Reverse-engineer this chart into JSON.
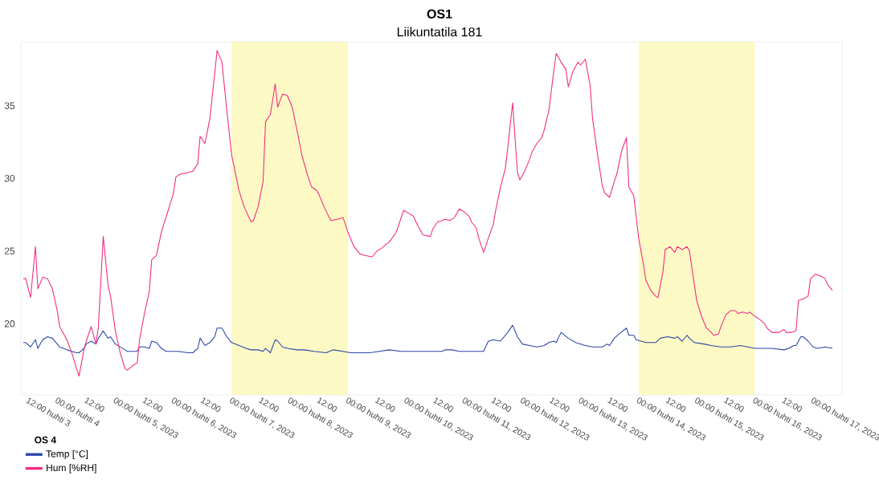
{
  "chart_data": {
    "type": "line",
    "title": "OS1",
    "subtitle": "Liikuntatila 181",
    "legend_title": "OS 4",
    "legend": "bottom left",
    "xlim": [
      "2023-04-03T09:00",
      "2023-04-17T12:00"
    ],
    "xticks": [
      {
        "value": "2023-04-03T12:00",
        "label": "12:00 huhti 3"
      },
      {
        "value": "2023-04-04T00:00",
        "label": "00:00 huhti 4"
      },
      {
        "value": "2023-04-04T12:00",
        "label": "12:00"
      },
      {
        "value": "2023-04-05T00:00",
        "label": "00:00 huhti 5, 2023"
      },
      {
        "value": "2023-04-05T12:00",
        "label": "12:00"
      },
      {
        "value": "2023-04-06T00:00",
        "label": "00:00 huhti 6, 2023"
      },
      {
        "value": "2023-04-06T12:00",
        "label": "12:00"
      },
      {
        "value": "2023-04-07T00:00",
        "label": "00:00 huhti 7, 2023"
      },
      {
        "value": "2023-04-07T12:00",
        "label": "12:00"
      },
      {
        "value": "2023-04-08T00:00",
        "label": "00:00 huhti 8, 2023"
      },
      {
        "value": "2023-04-08T12:00",
        "label": "12:00"
      },
      {
        "value": "2023-04-09T00:00",
        "label": "00:00 huhti 9, 2023"
      },
      {
        "value": "2023-04-09T12:00",
        "label": "12:00"
      },
      {
        "value": "2023-04-10T00:00",
        "label": "00:00 huhti 10, 2023"
      },
      {
        "value": "2023-04-10T12:00",
        "label": "12:00"
      },
      {
        "value": "2023-04-11T00:00",
        "label": "00:00 huhti 11, 2023"
      },
      {
        "value": "2023-04-11T12:00",
        "label": "12:00"
      },
      {
        "value": "2023-04-12T00:00",
        "label": "00:00 huhti 12, 2023"
      },
      {
        "value": "2023-04-12T12:00",
        "label": "12:00"
      },
      {
        "value": "2023-04-13T00:00",
        "label": "00:00 huhti 13, 2023"
      },
      {
        "value": "2023-04-13T12:00",
        "label": "12:00"
      },
      {
        "value": "2023-04-14T00:00",
        "label": "00:00 huhti 14, 2023"
      },
      {
        "value": "2023-04-14T12:00",
        "label": "12:00"
      },
      {
        "value": "2023-04-15T00:00",
        "label": "00:00 huhti 15, 2023"
      },
      {
        "value": "2023-04-15T12:00",
        "label": "12:00"
      },
      {
        "value": "2023-04-16T00:00",
        "label": "00:00 huhti 16, 2023"
      },
      {
        "value": "2023-04-16T12:00",
        "label": "12:00"
      },
      {
        "value": "2023-04-17T00:00",
        "label": "00:00 huhti 17, 2023"
      }
    ],
    "ylim": [
      15.1,
      39.4
    ],
    "yticks": [
      20,
      25,
      30,
      35
    ],
    "bands": [
      {
        "axis": "x",
        "from": "2023-04-07T00:00",
        "to": "2023-04-09T00:00",
        "color": "#fdf9c5"
      },
      {
        "axis": "x",
        "from": "2023-04-14T00:00",
        "to": "2023-04-16T00:00",
        "color": "#fdf9c5"
      }
    ],
    "series": [
      {
        "name": "Temp [°C]",
        "color": "#2b45a6",
        "x": [
          "2023-04-03T10:00",
          "2023-04-03T11:00",
          "2023-04-03T13:00",
          "2023-04-03T15:00",
          "2023-04-03T16:00",
          "2023-04-03T18:00",
          "2023-04-03T20:00",
          "2023-04-03T22:00",
          "2023-04-04T00:00",
          "2023-04-04T01:00",
          "2023-04-04T04:00",
          "2023-04-04T06:00",
          "2023-04-04T08:00",
          "2023-04-04T09:00",
          "2023-04-04T11:00",
          "2023-04-04T12:00",
          "2023-04-04T14:00",
          "2023-04-04T16:00",
          "2023-04-04T17:00",
          "2023-04-04T19:00",
          "2023-04-04T21:00",
          "2023-04-04T22:00",
          "2023-04-05T00:00",
          "2023-04-05T02:00",
          "2023-04-05T04:00",
          "2023-04-05T05:00",
          "2023-04-05T07:00",
          "2023-04-05T09:00",
          "2023-04-05T10:00",
          "2023-04-05T12:00",
          "2023-04-05T14:00",
          "2023-04-05T15:00",
          "2023-04-05T17:00",
          "2023-04-05T19:00",
          "2023-04-05T21:00",
          "2023-04-06T00:00",
          "2023-04-06T02:00",
          "2023-04-06T06:00",
          "2023-04-06T08:00",
          "2023-04-06T10:00",
          "2023-04-06T11:00",
          "2023-04-06T13:00",
          "2023-04-06T15:00",
          "2023-04-06T17:00",
          "2023-04-06T18:00",
          "2023-04-06T20:00",
          "2023-04-06T22:00",
          "2023-04-07T00:00",
          "2023-04-07T03:00",
          "2023-04-07T06:00",
          "2023-04-07T08:00",
          "2023-04-07T11:00",
          "2023-04-07T13:00",
          "2023-04-07T14:00",
          "2023-04-07T16:00",
          "2023-04-07T18:00",
          "2023-04-07T19:00",
          "2023-04-07T21:00",
          "2023-04-07T23:00",
          "2023-04-08T03:00",
          "2023-04-08T06:00",
          "2023-04-08T10:00",
          "2023-04-08T15:00",
          "2023-04-08T18:00",
          "2023-04-08T22:00",
          "2023-04-09T01:00",
          "2023-04-09T06:00",
          "2023-04-09T09:00",
          "2023-04-09T13:00",
          "2023-04-09T17:00",
          "2023-04-09T22:00",
          "2023-04-10T03:00",
          "2023-04-10T07:00",
          "2023-04-10T12:00",
          "2023-04-10T15:00",
          "2023-04-10T16:00",
          "2023-04-10T19:00",
          "2023-04-10T22:00",
          "2023-04-11T03:00",
          "2023-04-11T08:00",
          "2023-04-11T10:00",
          "2023-04-11T12:00",
          "2023-04-11T15:00",
          "2023-04-11T18:00",
          "2023-04-11T20:00",
          "2023-04-11T22:00",
          "2023-04-12T00:00",
          "2023-04-12T03:00",
          "2023-04-12T06:00",
          "2023-04-12T09:00",
          "2023-04-12T11:00",
          "2023-04-12T13:00",
          "2023-04-12T14:00",
          "2023-04-12T16:00",
          "2023-04-12T19:00",
          "2023-04-12T22:00",
          "2023-04-13T02:00",
          "2023-04-13T05:00",
          "2023-04-13T09:00",
          "2023-04-13T11:00",
          "2023-04-13T12:00",
          "2023-04-13T14:00",
          "2023-04-13T16:00",
          "2023-04-13T19:00",
          "2023-04-13T20:00",
          "2023-04-13T22:00",
          "2023-04-13T23:00",
          "2023-04-14T03:00",
          "2023-04-14T07:00",
          "2023-04-14T09:00",
          "2023-04-14T12:00",
          "2023-04-14T15:00",
          "2023-04-14T16:00",
          "2023-04-14T18:00",
          "2023-04-14T20:00",
          "2023-04-14T21:00",
          "2023-04-14T23:00",
          "2023-04-15T03:00",
          "2023-04-15T06:00",
          "2023-04-15T10:00",
          "2023-04-15T14:00",
          "2023-04-15T18:00",
          "2023-04-15T21:00",
          "2023-04-16T00:00",
          "2023-04-16T03:00",
          "2023-04-16T07:00",
          "2023-04-16T12:00",
          "2023-04-16T14:00",
          "2023-04-16T16:00",
          "2023-04-16T17:00",
          "2023-04-16T19:00",
          "2023-04-16T20:00",
          "2023-04-16T22:00",
          "2023-04-17T00:00",
          "2023-04-17T02:00",
          "2023-04-17T05:00",
          "2023-04-17T08:00"
        ],
        "values": [
          18.7,
          18.7,
          18.4,
          18.9,
          18.3,
          18.9,
          19.1,
          19.0,
          18.6,
          18.4,
          18.2,
          18.1,
          18.0,
          18.0,
          18.3,
          18.6,
          18.8,
          18.6,
          19.0,
          19.5,
          19.0,
          19.1,
          18.6,
          18.4,
          18.2,
          18.1,
          18.1,
          18.1,
          18.4,
          18.4,
          18.3,
          18.8,
          18.7,
          18.3,
          18.1,
          18.1,
          18.1,
          18.0,
          18.0,
          18.3,
          19.0,
          18.5,
          18.7,
          19.1,
          19.7,
          19.7,
          19.1,
          18.7,
          18.5,
          18.3,
          18.2,
          18.2,
          18.1,
          18.3,
          18.0,
          18.9,
          18.8,
          18.4,
          18.3,
          18.2,
          18.2,
          18.1,
          18.0,
          18.2,
          18.1,
          18.0,
          18.0,
          18.0,
          18.1,
          18.2,
          18.1,
          18.1,
          18.1,
          18.1,
          18.1,
          18.2,
          18.2,
          18.1,
          18.1,
          18.1,
          18.8,
          18.9,
          18.8,
          19.4,
          19.9,
          19.1,
          18.6,
          18.5,
          18.4,
          18.5,
          18.7,
          18.8,
          18.7,
          19.4,
          19.0,
          18.7,
          18.5,
          18.4,
          18.4,
          18.6,
          18.5,
          19.0,
          19.3,
          19.7,
          19.2,
          19.2,
          18.9,
          18.7,
          18.7,
          19.0,
          19.1,
          19.0,
          19.1,
          18.8,
          19.2,
          19.0,
          18.7,
          18.6,
          18.5,
          18.4,
          18.4,
          18.5,
          18.4,
          18.3,
          18.3,
          18.3,
          18.2,
          18.3,
          18.5,
          18.5,
          19.1,
          19.1,
          18.8,
          18.4,
          18.3,
          18.4,
          18.3
        ]
      },
      {
        "name": "Hum [%RH]",
        "color": "#f22a7f",
        "x": [
          "2023-04-03T10:00",
          "2023-04-03T11:00",
          "2023-04-03T13:00",
          "2023-04-03T15:00",
          "2023-04-03T16:00",
          "2023-04-03T18:00",
          "2023-04-03T20:00",
          "2023-04-03T22:00",
          "2023-04-04T00:00",
          "2023-04-04T01:00",
          "2023-04-04T04:00",
          "2023-04-04T06:00",
          "2023-04-04T08:00",
          "2023-04-04T09:00",
          "2023-04-04T11:00",
          "2023-04-04T12:00",
          "2023-04-04T14:00",
          "2023-04-04T16:00",
          "2023-04-04T17:00",
          "2023-04-04T19:00",
          "2023-04-04T21:00",
          "2023-04-04T22:00",
          "2023-04-05T00:00",
          "2023-04-05T02:00",
          "2023-04-05T04:00",
          "2023-04-05T05:00",
          "2023-04-05T07:00",
          "2023-04-05T09:00",
          "2023-04-05T10:00",
          "2023-04-05T12:00",
          "2023-04-05T14:00",
          "2023-04-05T15:00",
          "2023-04-05T17:00",
          "2023-04-05T19:00",
          "2023-04-05T22:00",
          "2023-04-06T00:00",
          "2023-04-06T01:00",
          "2023-04-06T03:00",
          "2023-04-06T06:00",
          "2023-04-06T08:00",
          "2023-04-06T10:00",
          "2023-04-06T11:00",
          "2023-04-06T13:00",
          "2023-04-06T15:00",
          "2023-04-06T17:00",
          "2023-04-06T18:00",
          "2023-04-06T20:00",
          "2023-04-06T22:00",
          "2023-04-07T00:00",
          "2023-04-07T03:00",
          "2023-04-07T05:00",
          "2023-04-07T08:00",
          "2023-04-07T09:00",
          "2023-04-07T11:00",
          "2023-04-07T13:00",
          "2023-04-07T14:00",
          "2023-04-07T16:00",
          "2023-04-07T18:00",
          "2023-04-07T19:00",
          "2023-04-07T21:00",
          "2023-04-07T23:00",
          "2023-04-08T01:00",
          "2023-04-08T03:00",
          "2023-04-08T05:00",
          "2023-04-08T07:00",
          "2023-04-08T09:00",
          "2023-04-08T11:00",
          "2023-04-08T12:00",
          "2023-04-08T14:00",
          "2023-04-08T16:00",
          "2023-04-08T17:00",
          "2023-04-08T20:00",
          "2023-04-08T22:00",
          "2023-04-09T00:00",
          "2023-04-09T02:00",
          "2023-04-09T03:00",
          "2023-04-09T05:00",
          "2023-04-09T07:00",
          "2023-04-09T10:00",
          "2023-04-09T12:00",
          "2023-04-09T14:00",
          "2023-04-09T16:00",
          "2023-04-09T17:00",
          "2023-04-09T20:00",
          "2023-04-09T23:00",
          "2023-04-10T01:00",
          "2023-04-10T03:00",
          "2023-04-10T05:00",
          "2023-04-10T07:00",
          "2023-04-10T10:00",
          "2023-04-10T11:00",
          "2023-04-10T13:00",
          "2023-04-10T15:00",
          "2023-04-10T16:00",
          "2023-04-10T18:00",
          "2023-04-10T20:00",
          "2023-04-10T22:00",
          "2023-04-11T00:00",
          "2023-04-11T02:00",
          "2023-04-11T03:00",
          "2023-04-11T05:00",
          "2023-04-11T06:00",
          "2023-04-11T08:00",
          "2023-04-11T10:00",
          "2023-04-11T12:00",
          "2023-04-11T13:00",
          "2023-04-11T15:00",
          "2023-04-11T17:00",
          "2023-04-11T18:00",
          "2023-04-11T20:00",
          "2023-04-11T22:00",
          "2023-04-11T23:00",
          "2023-04-12T01:00",
          "2023-04-12T03:00",
          "2023-04-12T04:00",
          "2023-04-12T06:00",
          "2023-04-12T08:00",
          "2023-04-12T09:00",
          "2023-04-12T11:00",
          "2023-04-12T13:00",
          "2023-04-12T14:00",
          "2023-04-12T16:00",
          "2023-04-12T18:00",
          "2023-04-12T19:00",
          "2023-04-12T21:00",
          "2023-04-12T23:00",
          "2023-04-13T00:00",
          "2023-04-13T02:00",
          "2023-04-13T04:00",
          "2023-04-13T05:00",
          "2023-04-13T07:00",
          "2023-04-13T09:00",
          "2023-04-13T10:00",
          "2023-04-13T12:00",
          "2023-04-13T14:00",
          "2023-04-13T15:00",
          "2023-04-13T17:00",
          "2023-04-13T19:00",
          "2023-04-13T20:00",
          "2023-04-13T22:00",
          "2023-04-13T23:00",
          "2023-04-14T00:00",
          "2023-04-14T02:00",
          "2023-04-14T03:00",
          "2023-04-14T05:00",
          "2023-04-14T07:00",
          "2023-04-14T08:00",
          "2023-04-14T10:00",
          "2023-04-14T11:00",
          "2023-04-14T13:00",
          "2023-04-14T15:00",
          "2023-04-14T16:00",
          "2023-04-14T18:00",
          "2023-04-14T20:00",
          "2023-04-14T21:00",
          "2023-04-14T23:00",
          "2023-04-15T00:00",
          "2023-04-15T02:00",
          "2023-04-15T04:00",
          "2023-04-15T06:00",
          "2023-04-15T07:00",
          "2023-04-15T09:00",
          "2023-04-15T10:00",
          "2023-04-15T12:00",
          "2023-04-15T14:00",
          "2023-04-15T16:00",
          "2023-04-15T17:00",
          "2023-04-15T19:00",
          "2023-04-15T21:00",
          "2023-04-15T22:00",
          "2023-04-16T00:00",
          "2023-04-16T02:00",
          "2023-04-16T04:00",
          "2023-04-16T05:00",
          "2023-04-16T07:00",
          "2023-04-16T09:00",
          "2023-04-16T10:00",
          "2023-04-16T12:00",
          "2023-04-16T13:00",
          "2023-04-16T15:00",
          "2023-04-16T17:00",
          "2023-04-16T18:00",
          "2023-04-16T20:00",
          "2023-04-16T22:00",
          "2023-04-16T23:00",
          "2023-04-17T01:00",
          "2023-04-17T03:00",
          "2023-04-17T05:00",
          "2023-04-17T06:00",
          "2023-04-17T08:00"
        ],
        "values": [
          23.1,
          23.1,
          21.8,
          25.3,
          22.4,
          23.2,
          23.1,
          22.4,
          20.9,
          19.8,
          18.9,
          18.0,
          16.9,
          16.4,
          18.2,
          18.8,
          19.8,
          18.6,
          19.8,
          26.0,
          22.6,
          21.9,
          19.5,
          18.0,
          16.9,
          16.8,
          17.1,
          17.3,
          18.9,
          20.7,
          22.2,
          24.4,
          24.7,
          26.3,
          27.9,
          29.0,
          30.1,
          30.3,
          30.4,
          30.5,
          31.0,
          32.9,
          32.4,
          34.1,
          37.2,
          38.8,
          38.0,
          34.7,
          31.6,
          29.2,
          28.1,
          27.0,
          27.1,
          28.1,
          29.8,
          33.9,
          34.4,
          36.5,
          34.9,
          35.8,
          35.7,
          34.9,
          33.3,
          31.6,
          30.4,
          29.4,
          29.2,
          28.9,
          28.1,
          27.4,
          27.1,
          27.2,
          27.3,
          26.3,
          25.5,
          25.2,
          24.8,
          24.7,
          24.6,
          25.0,
          25.2,
          25.5,
          25.6,
          26.3,
          27.8,
          27.6,
          27.4,
          26.7,
          26.1,
          26.0,
          26.5,
          27.0,
          27.1,
          27.2,
          27.1,
          27.3,
          27.9,
          27.7,
          27.4,
          27.0,
          26.6,
          25.9,
          24.9,
          25.9,
          26.8,
          27.8,
          29.4,
          30.7,
          32.1,
          35.2,
          30.4,
          29.9,
          30.5,
          31.3,
          31.8,
          32.4,
          32.8,
          33.3,
          34.7,
          37.4,
          38.6,
          38.0,
          37.5,
          36.3,
          37.4,
          38.0,
          37.8,
          38.2,
          36.4,
          34.1,
          31.7,
          29.5,
          29.0,
          28.7,
          29.8,
          30.3,
          31.9,
          32.8,
          29.4,
          28.8,
          27.4,
          25.9,
          24.1,
          23.0,
          22.3,
          21.9,
          21.8,
          23.5,
          25.1,
          25.3,
          24.9,
          25.3,
          25.1,
          25.3,
          25.0,
          22.7,
          21.6,
          20.5,
          19.7,
          19.4,
          19.2,
          19.3,
          19.8,
          20.6,
          20.9,
          20.9,
          20.7,
          20.8,
          20.7,
          20.8,
          20.5,
          20.3,
          20.0,
          19.7,
          19.4,
          19.4,
          19.4,
          19.6,
          19.4,
          19.4,
          19.5,
          21.6,
          21.7,
          21.9,
          23.1,
          23.4,
          23.3,
          23.1,
          22.7,
          22.3
        ]
      }
    ]
  }
}
